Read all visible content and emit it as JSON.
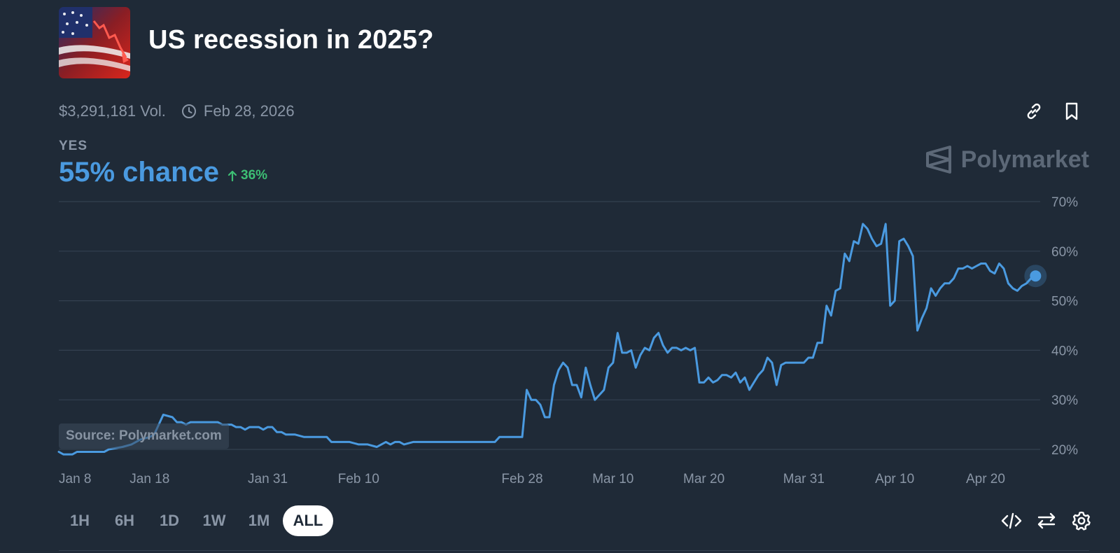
{
  "market": {
    "title": "US recession in 2025?",
    "volume": "$3,291,181 Vol.",
    "end_date": "Feb 28, 2026",
    "outcome_label": "YES",
    "chance_text": "55% chance",
    "change_text": "36%",
    "brand": "Polymarket",
    "source_note": "Source: Polymarket.com"
  },
  "icons": {
    "clock": "clock-icon",
    "link": "link-icon",
    "bookmark": "bookmark-icon",
    "trend": "arrow-up-icon",
    "embed": "code-icon",
    "swap": "swap-icon",
    "settings": "gear-icon"
  },
  "time_ranges": [
    {
      "label": "1H",
      "active": false
    },
    {
      "label": "6H",
      "active": false
    },
    {
      "label": "1D",
      "active": false
    },
    {
      "label": "1W",
      "active": false
    },
    {
      "label": "1M",
      "active": false
    },
    {
      "label": "ALL",
      "active": true
    }
  ],
  "colors": {
    "background": "#1f2a37",
    "line": "#4a9ae0",
    "positive": "#3dbf74",
    "muted": "#8a96a6",
    "grid": "#334050"
  },
  "chart_data": {
    "type": "line",
    "title": "",
    "xlabel": "",
    "ylabel": "",
    "ylim": [
      20,
      70
    ],
    "y_ticks": [
      20,
      30,
      40,
      50,
      60,
      70
    ],
    "y_tick_labels": [
      "20%",
      "30%",
      "40%",
      "50%",
      "60%",
      "70%"
    ],
    "x_tick_labels": [
      "Jan 8",
      "Jan 18",
      "Jan 31",
      "Feb 10",
      "Feb 28",
      "Mar 10",
      "Mar 20",
      "Mar 31",
      "Apr 10",
      "Apr 20"
    ],
    "x_tick_days": [
      0,
      10,
      23,
      33,
      51,
      61,
      71,
      82,
      92,
      102
    ],
    "grid": true,
    "series": [
      {
        "values": [
          [
            0,
            19.5
          ],
          [
            0.5,
            19
          ],
          [
            1.5,
            19
          ],
          [
            2,
            19.5
          ],
          [
            4,
            19.5
          ],
          [
            5,
            19.5
          ],
          [
            5.5,
            20
          ],
          [
            7,
            20.5
          ],
          [
            8,
            21
          ],
          [
            9,
            22
          ],
          [
            10,
            22.5
          ],
          [
            10.5,
            23
          ],
          [
            11,
            25
          ],
          [
            11.5,
            27
          ],
          [
            12.5,
            26.5
          ],
          [
            13,
            25.5
          ],
          [
            13.5,
            25.5
          ],
          [
            14,
            25
          ],
          [
            14.5,
            25.5
          ],
          [
            16,
            25.5
          ],
          [
            17.5,
            25.5
          ],
          [
            18,
            25
          ],
          [
            19,
            25
          ],
          [
            19.5,
            24.5
          ],
          [
            20,
            24.5
          ],
          [
            20.5,
            24
          ],
          [
            21,
            24.5
          ],
          [
            22,
            24.5
          ],
          [
            22.5,
            24
          ],
          [
            23,
            24.5
          ],
          [
            23.5,
            24.5
          ],
          [
            24,
            23.5
          ],
          [
            24.5,
            23.5
          ],
          [
            25,
            23
          ],
          [
            26,
            23
          ],
          [
            27,
            22.5
          ],
          [
            28,
            22.5
          ],
          [
            29.5,
            22.5
          ],
          [
            30,
            21.5
          ],
          [
            32,
            21.5
          ],
          [
            33,
            21
          ],
          [
            34,
            21
          ],
          [
            35,
            20.5
          ],
          [
            35.5,
            21
          ],
          [
            36,
            21.5
          ],
          [
            36.5,
            21
          ],
          [
            37,
            21.5
          ],
          [
            37.5,
            21.5
          ],
          [
            38,
            21
          ],
          [
            39,
            21.5
          ],
          [
            42,
            21.5
          ],
          [
            45,
            21.5
          ],
          [
            48,
            21.5
          ],
          [
            48.5,
            22.5
          ],
          [
            50.5,
            22.5
          ],
          [
            51,
            22.5
          ],
          [
            51.5,
            32
          ],
          [
            52,
            30
          ],
          [
            52.5,
            30
          ],
          [
            53,
            29
          ],
          [
            53.5,
            26.5
          ],
          [
            54,
            26.5
          ],
          [
            54.5,
            33
          ],
          [
            55,
            36
          ],
          [
            55.5,
            37.5
          ],
          [
            56,
            36.5
          ],
          [
            56.5,
            33
          ],
          [
            57,
            33
          ],
          [
            57.5,
            30.5
          ],
          [
            58,
            36.5
          ],
          [
            58.5,
            33
          ],
          [
            59,
            30
          ],
          [
            59.5,
            31
          ],
          [
            60,
            32
          ],
          [
            60.5,
            36.5
          ],
          [
            61,
            37.5
          ],
          [
            61.5,
            43.5
          ],
          [
            62,
            39.5
          ],
          [
            62.5,
            39.5
          ],
          [
            63,
            40
          ],
          [
            63.5,
            36.5
          ],
          [
            64,
            39
          ],
          [
            64.5,
            40.5
          ],
          [
            65,
            40
          ],
          [
            65.5,
            42.5
          ],
          [
            66,
            43.5
          ],
          [
            66.5,
            41
          ],
          [
            67,
            39.5
          ],
          [
            67.5,
            40.5
          ],
          [
            68,
            40.5
          ],
          [
            68.5,
            40
          ],
          [
            69,
            40.5
          ],
          [
            69.5,
            40
          ],
          [
            70,
            40.5
          ],
          [
            70.5,
            33.5
          ],
          [
            71,
            33.5
          ],
          [
            71.5,
            34.5
          ],
          [
            72,
            33.5
          ],
          [
            72.5,
            34
          ],
          [
            73,
            35
          ],
          [
            73.5,
            35
          ],
          [
            74,
            34.5
          ],
          [
            74.5,
            35.5
          ],
          [
            75,
            33.5
          ],
          [
            75.5,
            34.5
          ],
          [
            76,
            32
          ],
          [
            76.5,
            33.5
          ],
          [
            77,
            35
          ],
          [
            77.5,
            36
          ],
          [
            78,
            38.5
          ],
          [
            78.5,
            37.5
          ],
          [
            79,
            33
          ],
          [
            79.5,
            37
          ],
          [
            80,
            37.5
          ],
          [
            81,
            37.5
          ],
          [
            82,
            37.5
          ],
          [
            82.5,
            38.5
          ],
          [
            83,
            38.5
          ],
          [
            83.5,
            41.5
          ],
          [
            84,
            41.5
          ],
          [
            84.5,
            49
          ],
          [
            85,
            47
          ],
          [
            85.5,
            52
          ],
          [
            86,
            52.5
          ],
          [
            86.5,
            59.5
          ],
          [
            87,
            58
          ],
          [
            87.5,
            62
          ],
          [
            88,
            61.5
          ],
          [
            88.5,
            65.5
          ],
          [
            89,
            64.5
          ],
          [
            89.5,
            62.5
          ],
          [
            90,
            61
          ],
          [
            90.5,
            61.5
          ],
          [
            91,
            65.5
          ],
          [
            91.5,
            49
          ],
          [
            92,
            50
          ],
          [
            92.5,
            62
          ],
          [
            93,
            62.5
          ],
          [
            93.5,
            61
          ],
          [
            94,
            59
          ],
          [
            94.5,
            44
          ],
          [
            95,
            46.5
          ],
          [
            95.5,
            48.5
          ],
          [
            96,
            52.5
          ],
          [
            96.5,
            51
          ],
          [
            97,
            52.5
          ],
          [
            97.5,
            53.5
          ],
          [
            98,
            53.5
          ],
          [
            98.5,
            54.5
          ],
          [
            99,
            56.5
          ],
          [
            99.5,
            56.5
          ],
          [
            100,
            57
          ],
          [
            100.5,
            56.5
          ],
          [
            101,
            57
          ],
          [
            101.5,
            57.5
          ],
          [
            102,
            57.5
          ],
          [
            102.5,
            56
          ],
          [
            103,
            55.5
          ],
          [
            103.5,
            57.5
          ],
          [
            104,
            56.5
          ],
          [
            104.5,
            53.5
          ],
          [
            105,
            52.5
          ],
          [
            105.5,
            52
          ],
          [
            106,
            53
          ],
          [
            106.5,
            53.5
          ],
          [
            107,
            54.5
          ],
          [
            107.5,
            55
          ]
        ]
      }
    ]
  }
}
